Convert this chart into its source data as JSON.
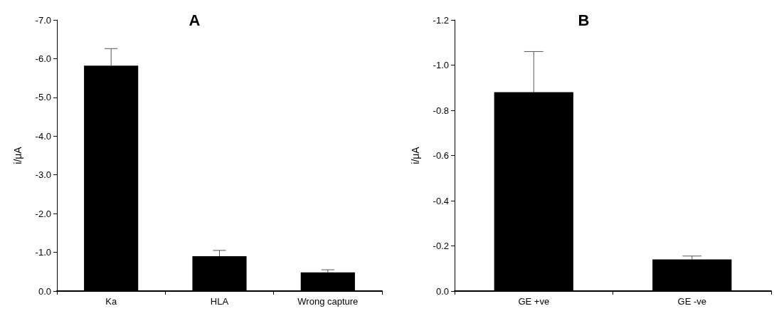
{
  "chart_data": [
    {
      "type": "bar",
      "title": "A",
      "ylabel": "i/μA",
      "categories": [
        "Ka",
        "HLA",
        "Wrong capture"
      ],
      "color": "#000000",
      "values": [
        -5.82,
        -0.9,
        -0.48
      ],
      "errors": [
        [
          -6.26,
          -5.82
        ],
        [
          -1.05,
          -0.9
        ],
        [
          -0.55,
          -0.48
        ]
      ],
      "ylim": [
        0,
        -7
      ],
      "yticks": [
        {
          "value": 0,
          "label": "0.0"
        },
        {
          "value": -1,
          "label": "-1.0"
        },
        {
          "value": -2,
          "label": "-2.0"
        },
        {
          "value": -3,
          "label": "-3.0"
        },
        {
          "value": -4,
          "label": "-4.0"
        },
        {
          "value": -5,
          "label": "-5.0"
        },
        {
          "value": -6,
          "label": "-6.0"
        },
        {
          "value": -7,
          "label": "-7.0"
        }
      ],
      "grid": false
    },
    {
      "type": "bar",
      "title": "B",
      "ylabel": "i/μA",
      "categories": [
        "GE +ve",
        "GE -ve"
      ],
      "color": "#000000",
      "values": [
        -0.88,
        -0.14
      ],
      "errors": [
        [
          -1.06,
          -0.88
        ],
        [
          -0.155,
          -0.14
        ]
      ],
      "ylim": [
        0,
        -1.2
      ],
      "yticks": [
        {
          "value": 0,
          "label": "0.0"
        },
        {
          "value": -0.2,
          "label": "-0.2"
        },
        {
          "value": -0.4,
          "label": "-0.4"
        },
        {
          "value": -0.6,
          "label": "-0.6"
        },
        {
          "value": -0.8,
          "label": "-0.8"
        },
        {
          "value": -1,
          "label": "-1.0"
        },
        {
          "value": -1.2,
          "label": "-1.2"
        }
      ],
      "grid": false
    }
  ]
}
